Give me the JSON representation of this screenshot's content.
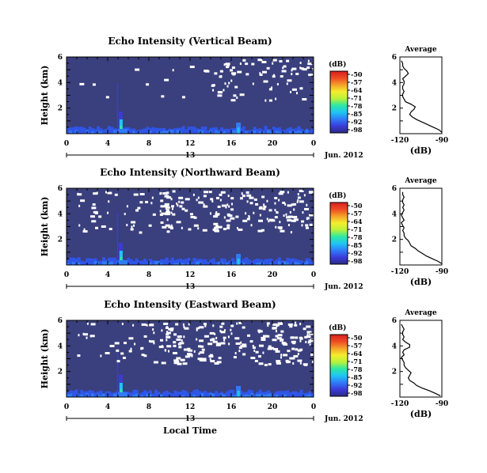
{
  "figure": {
    "xlabel": "Local Time",
    "date_label": "Jun. 2012",
    "day_label": "13",
    "colorbar_unit": "(dB)",
    "colorbar_ticks": [
      "-50",
      "-57",
      "-64",
      "-71",
      "-78",
      "-85",
      "-92",
      "-98"
    ],
    "colormap": [
      "#2a2a86",
      "#3b3bd9",
      "#2f7cf6",
      "#20c5f4",
      "#2de8a5",
      "#b8f23a",
      "#f4ee2e",
      "#f4a12a",
      "#ee4a24",
      "#d6201e"
    ],
    "background_color": "#3a3f7d"
  },
  "chart_data": [
    {
      "type": "heatmap",
      "title": "Echo Intensity (Vertical Beam)",
      "ylabel": "Height (km)",
      "xlim": [
        0,
        24
      ],
      "ylim": [
        0,
        6
      ],
      "x_ticks": [
        "0",
        "4",
        "8",
        "12",
        "16",
        "20",
        "0"
      ],
      "y_ticks": [
        "2",
        "4",
        "6"
      ],
      "value_range_db": [
        -98,
        -50
      ],
      "average_profile": {
        "title": "Average",
        "xlabel": "(dB)",
        "xlim": [
          -120,
          -90
        ],
        "x_ticks": [
          "-120",
          "-90"
        ],
        "y_ticks": [
          "2",
          "4",
          "6"
        ],
        "height_km": [
          0.1,
          0.3,
          0.5,
          0.7,
          0.9,
          1.1,
          1.3,
          1.5,
          1.7,
          1.9,
          2.1,
          2.3,
          2.5,
          2.7,
          2.9,
          3.1,
          3.3,
          3.5,
          3.7,
          3.9,
          4.1,
          4.3,
          4.5,
          4.7,
          4.9,
          5.1,
          5.3,
          5.5,
          5.7
        ],
        "db": [
          -90,
          -92,
          -96,
          -100,
          -104,
          -108,
          -111,
          -113,
          -112,
          -110,
          -109,
          -112,
          -116,
          -117,
          -118,
          -118,
          -117,
          -118,
          -118,
          -117,
          -117,
          -118,
          -116,
          -114,
          -115,
          -117,
          -118,
          -118,
          -119
        ]
      }
    },
    {
      "type": "heatmap",
      "title": "Echo Intensity (Northward Beam)",
      "ylabel": "Height (km)",
      "xlim": [
        0,
        24
      ],
      "ylim": [
        0,
        6
      ],
      "x_ticks": [
        "0",
        "4",
        "8",
        "12",
        "16",
        "20",
        "0"
      ],
      "y_ticks": [
        "2",
        "4",
        "6"
      ],
      "value_range_db": [
        -98,
        -50
      ],
      "average_profile": {
        "title": "Average",
        "xlabel": "(dB)",
        "xlim": [
          -120,
          -90
        ],
        "x_ticks": [
          "-120",
          "-90"
        ],
        "y_ticks": [
          "2",
          "4",
          "6"
        ],
        "height_km": [
          0.1,
          0.3,
          0.5,
          0.7,
          0.9,
          1.1,
          1.3,
          1.5,
          1.7,
          1.9,
          2.1,
          2.3,
          2.5,
          2.7,
          2.9,
          3.1,
          3.3,
          3.5,
          3.7,
          3.9,
          4.1,
          4.3,
          4.5,
          4.7,
          4.9,
          5.1,
          5.3,
          5.5,
          5.7
        ],
        "db": [
          -90,
          -93,
          -97,
          -101,
          -104,
          -107,
          -109,
          -112,
          -113,
          -114,
          -116,
          -117,
          -117,
          -118,
          -117,
          -118,
          -119,
          -117,
          -118,
          -119,
          -118,
          -117,
          -118,
          -117,
          -118,
          -118,
          -117,
          -118,
          -118
        ]
      }
    },
    {
      "type": "heatmap",
      "title": "Echo Intensity (Eastward Beam)",
      "ylabel": "Height (km)",
      "xlim": [
        0,
        24
      ],
      "ylim": [
        0,
        6
      ],
      "x_ticks": [
        "0",
        "4",
        "8",
        "12",
        "16",
        "20",
        "0"
      ],
      "y_ticks": [
        "2",
        "4",
        "6"
      ],
      "value_range_db": [
        -98,
        -50
      ],
      "average_profile": {
        "title": "Average",
        "xlabel": "(dB)",
        "xlim": [
          -120,
          -90
        ],
        "x_ticks": [
          "-120",
          "-90"
        ],
        "y_ticks": [
          "2",
          "4",
          "6"
        ],
        "height_km": [
          0.1,
          0.3,
          0.5,
          0.7,
          0.9,
          1.1,
          1.3,
          1.5,
          1.7,
          1.9,
          2.1,
          2.3,
          2.5,
          2.7,
          2.9,
          3.1,
          3.3,
          3.5,
          3.7,
          3.9,
          4.1,
          4.3,
          4.5,
          4.7,
          4.9,
          5.1,
          5.3,
          5.5,
          5.7
        ],
        "db": [
          -91,
          -95,
          -99,
          -104,
          -108,
          -110,
          -113,
          -114,
          -113,
          -112,
          -114,
          -116,
          -117,
          -117,
          -118,
          -119,
          -117,
          -118,
          -117,
          -113,
          -113,
          -116,
          -118,
          -117,
          -118,
          -118,
          -117,
          -118,
          -119
        ]
      }
    }
  ]
}
